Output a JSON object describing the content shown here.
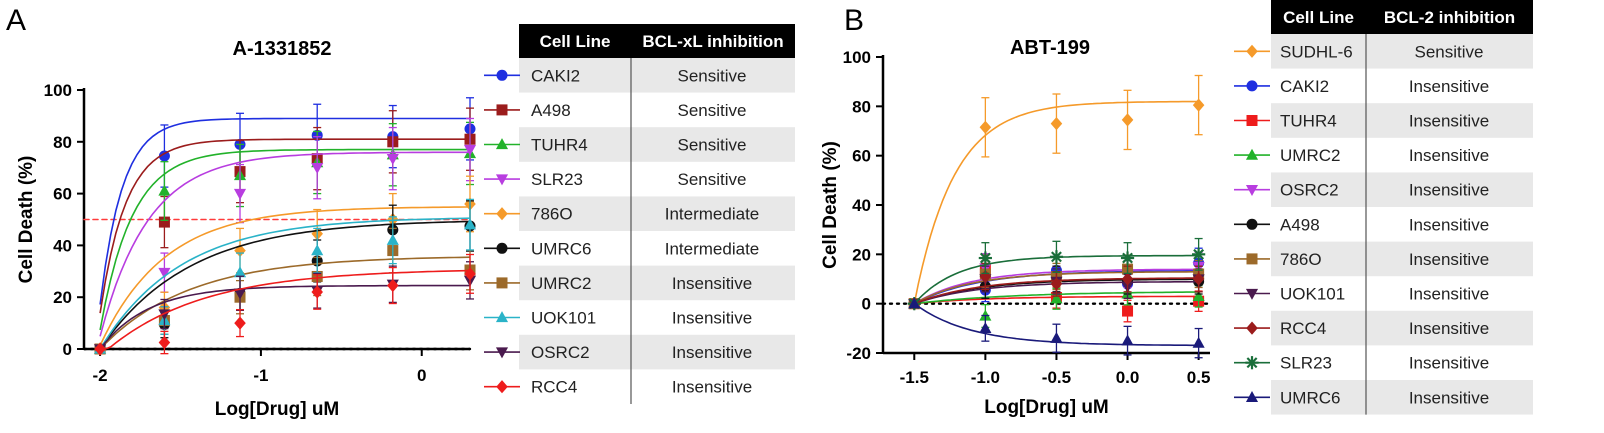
{
  "panels": [
    "A",
    "B"
  ],
  "chart_data": [
    {
      "type": "line",
      "title": "A-1331852",
      "xlabel": "Log[Drug] uM",
      "ylabel": "Cell Death (%)",
      "xlim": [
        -2.1,
        0.3
      ],
      "ylim": [
        0,
        100
      ],
      "xticks": [
        -2,
        -1,
        0
      ],
      "yticks": [
        0,
        20,
        40,
        60,
        80,
        100
      ],
      "x": [
        -2,
        -1.6,
        -1.13,
        -0.65,
        -0.18,
        0.3
      ],
      "reference_lines": [
        {
          "y": 0,
          "style": "dotted",
          "color": "#000000"
        },
        {
          "y": 50,
          "style": "dashed",
          "color": "#ff3b3b"
        }
      ],
      "series": [
        {
          "name": "CAKI2",
          "color": "#1f2fe0",
          "marker": "circle",
          "values": [
            0,
            74.5,
            79,
            82.5,
            82,
            85
          ],
          "fit": [
            -2.03,
            0.14,
            89
          ]
        },
        {
          "name": "A498",
          "color": "#9b1c1c",
          "marker": "square",
          "values": [
            0,
            49,
            68.5,
            73.5,
            80,
            81
          ],
          "fit": [
            -2.03,
            0.16,
            81
          ]
        },
        {
          "name": "TUHR4",
          "color": "#22b22a",
          "marker": "triangle-up",
          "values": [
            0,
            61,
            67,
            72,
            75,
            75.5
          ],
          "fit": [
            -2.02,
            0.2,
            77
          ]
        },
        {
          "name": "SLR23",
          "color": "#b83de0",
          "marker": "triangle-down",
          "values": [
            0,
            29.5,
            60,
            70,
            73.5,
            77
          ],
          "fit": [
            -2.02,
            0.3,
            76
          ]
        },
        {
          "name": "786O",
          "color": "#f59a2a",
          "marker": "diamond",
          "values": [
            0,
            16,
            38,
            44.5,
            50,
            56
          ],
          "fit": [
            -2.01,
            0.4,
            55
          ]
        },
        {
          "name": "UMRC6",
          "color": "#111111",
          "marker": "circle",
          "values": [
            0,
            9.5,
            21.5,
            34,
            46,
            47.5
          ],
          "fit": [
            -2.0,
            0.55,
            50
          ]
        },
        {
          "name": "UMRC2",
          "color": "#9c6a2a",
          "marker": "square",
          "values": [
            0,
            11,
            20,
            28,
            38,
            30.5
          ],
          "fit": [
            -2.0,
            0.55,
            36
          ]
        },
        {
          "name": "UOK101",
          "color": "#2ab3c8",
          "marker": "triangle-up",
          "values": [
            0,
            11,
            29.5,
            38,
            42,
            48
          ],
          "fit": [
            -2.0,
            0.5,
            51
          ]
        },
        {
          "name": "OSRC2",
          "color": "#4a1a4e",
          "marker": "triangle-down",
          "values": [
            0,
            13.5,
            21.5,
            22.5,
            25,
            26.5
          ],
          "fit": [
            -2.0,
            0.3,
            24.5
          ]
        },
        {
          "name": "RCC4",
          "color": "#ee1c1c",
          "marker": "diamond",
          "values": [
            0,
            2.5,
            10,
            22,
            24.5,
            29
          ],
          "fit": [
            -1.95,
            0.6,
            31
          ]
        }
      ]
    },
    {
      "type": "line",
      "title": "ABT-199",
      "xlabel": "Log[Drug] uM",
      "ylabel": "Cell Death (%)",
      "xlim": [
        -1.72,
        0.58
      ],
      "ylim": [
        -20,
        100
      ],
      "xticks": [
        -1.5,
        -1.0,
        -0.5,
        0.0,
        0.5
      ],
      "xtick_labels": [
        "-1.5",
        "-1.0",
        "-0.5",
        "0.0",
        "0.5"
      ],
      "yticks": [
        -20,
        0,
        20,
        40,
        60,
        80,
        100
      ],
      "x": [
        -1.5,
        -1.0,
        -0.5,
        0.0,
        0.5
      ],
      "reference_lines": [
        {
          "y": 0,
          "style": "dotted",
          "color": "#000000"
        }
      ],
      "series": [
        {
          "name": "SUDHL-6",
          "color": "#f59a2a",
          "marker": "diamond",
          "values": [
            0,
            71.5,
            73,
            74.5,
            80.5
          ],
          "fit": [
            -1.5,
            0.28,
            82
          ]
        },
        {
          "name": "CAKI2",
          "color": "#1f2fe0",
          "marker": "circle",
          "values": [
            0,
            5.5,
            13.5,
            8,
            16.5
          ],
          "fit": [
            -1.5,
            0.45,
            13.5
          ]
        },
        {
          "name": "TUHR4",
          "color": "#ee1c1c",
          "marker": "square",
          "values": [
            0,
            14,
            2.5,
            -3,
            1
          ],
          "fit": [
            -1.5,
            0.5,
            3
          ]
        },
        {
          "name": "UMRC2",
          "color": "#22b22a",
          "marker": "triangle-up",
          "values": [
            0,
            -5,
            2,
            4,
            3
          ],
          "fit": [
            -1.5,
            0.7,
            5
          ]
        },
        {
          "name": "OSRC2",
          "color": "#b83de0",
          "marker": "triangle-down",
          "values": [
            0,
            14.5,
            10,
            12,
            15
          ],
          "fit": [
            -1.5,
            0.4,
            14
          ]
        },
        {
          "name": "A498",
          "color": "#111111",
          "marker": "circle",
          "values": [
            0,
            7,
            10,
            9,
            9
          ],
          "fit": [
            -1.5,
            0.45,
            10
          ]
        },
        {
          "name": "786O",
          "color": "#9c6a2a",
          "marker": "square",
          "values": [
            0,
            12,
            11,
            14,
            12
          ],
          "fit": [
            -1.5,
            0.4,
            13
          ]
        },
        {
          "name": "UOK101",
          "color": "#4a1a4e",
          "marker": "triangle-down",
          "values": [
            0,
            10,
            9,
            7,
            10
          ],
          "fit": [
            -1.5,
            0.45,
            9
          ]
        },
        {
          "name": "RCC4",
          "color": "#9b1c1c",
          "marker": "diamond",
          "values": [
            0,
            11,
            8,
            10,
            10
          ],
          "fit": [
            -1.5,
            0.45,
            10.5
          ]
        },
        {
          "name": "SLR23",
          "color": "#1a6e3a",
          "marker": "asterisk",
          "values": [
            0,
            18.5,
            19,
            18.5,
            20
          ],
          "fit": [
            -1.5,
            0.3,
            19.5
          ]
        },
        {
          "name": "UMRC6",
          "color": "#1a1a7a",
          "marker": "triangle-up",
          "values": [
            0,
            -10,
            -14,
            -15,
            -16
          ],
          "fit": [
            -1.5,
            0.4,
            -17
          ]
        }
      ]
    }
  ],
  "tables": [
    {
      "headers": [
        "Cell Line",
        "BCL-xL inhibition"
      ],
      "rows": [
        {
          "name": "CAKI2",
          "status": "Sensitive"
        },
        {
          "name": "A498",
          "status": "Sensitive"
        },
        {
          "name": "TUHR4",
          "status": "Sensitive"
        },
        {
          "name": "SLR23",
          "status": "Sensitive"
        },
        {
          "name": "786O",
          "status": "Intermediate"
        },
        {
          "name": "UMRC6",
          "status": "Intermediate"
        },
        {
          "name": "UMRC2",
          "status": "Insensitive"
        },
        {
          "name": "UOK101",
          "status": "Insensitive"
        },
        {
          "name": "OSRC2",
          "status": "Insensitive"
        },
        {
          "name": "RCC4",
          "status": "Insensitive"
        }
      ]
    },
    {
      "headers": [
        "Cell Line",
        "BCL-2 inhibition"
      ],
      "rows": [
        {
          "name": "SUDHL-6",
          "status": "Sensitive"
        },
        {
          "name": "CAKI2",
          "status": "Insensitive"
        },
        {
          "name": "TUHR4",
          "status": "Insensitive"
        },
        {
          "name": "UMRC2",
          "status": "Insensitive"
        },
        {
          "name": "OSRC2",
          "status": "Insensitive"
        },
        {
          "name": "A498",
          "status": "Insensitive"
        },
        {
          "name": "786O",
          "status": "Insensitive"
        },
        {
          "name": "UOK101",
          "status": "Insensitive"
        },
        {
          "name": "RCC4",
          "status": "Insensitive"
        },
        {
          "name": "SLR23",
          "status": "Insensitive"
        },
        {
          "name": "UMRC6",
          "status": "Insensitive"
        }
      ]
    }
  ]
}
